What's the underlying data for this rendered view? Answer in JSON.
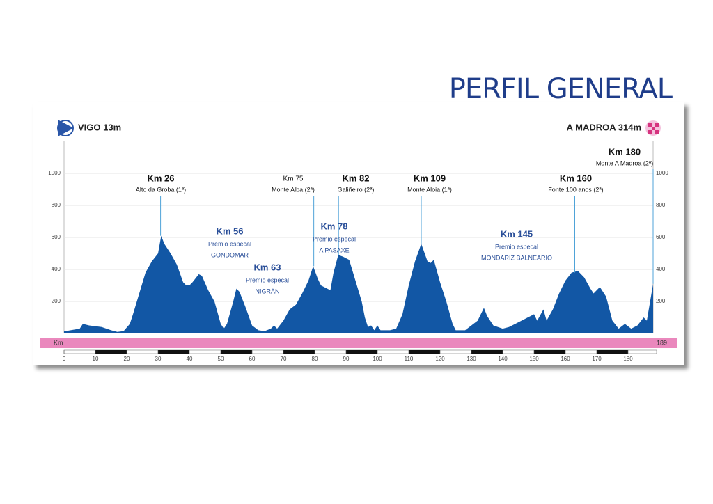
{
  "chart_data": {
    "type": "area",
    "title": "PERFIL GENERAL",
    "start_label": "VIGO 13m",
    "finish_label": "A MADROA 314m",
    "distance_axis_label": "Km",
    "total_distance_label": "189",
    "color": "#1257a5",
    "x": [
      0,
      5,
      6,
      8,
      12,
      15,
      17,
      19,
      21,
      22,
      24,
      26,
      28,
      30,
      31,
      32,
      34,
      36,
      38,
      39,
      40,
      41,
      43,
      44,
      46,
      48,
      50,
      51,
      52,
      54,
      55,
      56,
      58,
      60,
      62,
      64,
      66,
      67,
      68,
      70,
      72,
      74,
      76,
      78,
      79.5,
      81,
      82,
      84,
      85,
      86,
      87.5,
      89,
      91,
      93,
      95,
      96,
      97,
      98,
      99,
      100,
      101,
      104,
      106,
      108,
      110,
      112,
      114,
      116,
      117,
      118,
      120,
      122,
      124,
      125,
      128,
      130,
      132,
      134,
      135,
      137,
      140,
      142,
      144,
      146,
      148,
      150,
      151,
      153,
      154,
      156,
      158,
      160,
      162,
      164,
      166,
      168,
      169,
      171,
      173,
      175,
      177,
      179,
      181,
      183,
      185,
      186,
      188
    ],
    "values": [
      13,
      30,
      60,
      50,
      40,
      20,
      10,
      15,
      60,
      120,
      250,
      380,
      450,
      500,
      610,
      560,
      500,
      430,
      320,
      300,
      300,
      320,
      370,
      360,
      270,
      200,
      60,
      30,
      60,
      200,
      280,
      260,
      160,
      50,
      20,
      15,
      30,
      50,
      30,
      80,
      150,
      180,
      250,
      330,
      420,
      340,
      300,
      280,
      270,
      380,
      490,
      480,
      460,
      330,
      200,
      100,
      40,
      50,
      20,
      50,
      20,
      20,
      30,
      120,
      300,
      450,
      560,
      450,
      440,
      460,
      320,
      200,
      60,
      20,
      20,
      50,
      80,
      160,
      110,
      50,
      30,
      40,
      60,
      80,
      100,
      120,
      80,
      150,
      80,
      150,
      250,
      330,
      380,
      390,
      350,
      280,
      250,
      290,
      230,
      80,
      30,
      60,
      30,
      50,
      100,
      80,
      310
    ],
    "xlim": [
      0,
      188
    ],
    "ylim": [
      0,
      1200
    ],
    "xticks": [
      0,
      10,
      20,
      30,
      40,
      50,
      60,
      70,
      80,
      90,
      100,
      110,
      120,
      130,
      140,
      150,
      160,
      170,
      180
    ],
    "yticks": [
      200,
      400,
      600,
      800,
      1000
    ],
    "grid": true,
    "annotations": [
      {
        "label": "Km 26",
        "text": "Alto da Groba (1ª)",
        "x": 30.8
      },
      {
        "label": "Km 75",
        "text": "Monte Alba (2ª)",
        "x": 79.7
      },
      {
        "label": "Km 82",
        "text": "Galiñeiro (2ª)",
        "x": 87.6
      },
      {
        "label": "Km 109",
        "text": "Monte Aloia (1ª)",
        "x": 114
      },
      {
        "label": "Km 160",
        "text": "Fonte 100 anos (2ª)",
        "x": 163
      },
      {
        "label": "Km 180",
        "text": "Monte A Madroa (2ª)",
        "x": 188
      }
    ],
    "special": [
      {
        "label": "Km 56",
        "text": "Premio especal",
        "place": "GONDOMAR"
      },
      {
        "label": "Km 63",
        "text": "Premio especal",
        "place": "NIGRÁN"
      },
      {
        "label": "Km 78",
        "text": "Premio especal",
        "place": "A PASAXE"
      },
      {
        "label": "Km 145",
        "text": "Premio especal",
        "place": "MONDARIZ BALNEARIO"
      }
    ]
  }
}
